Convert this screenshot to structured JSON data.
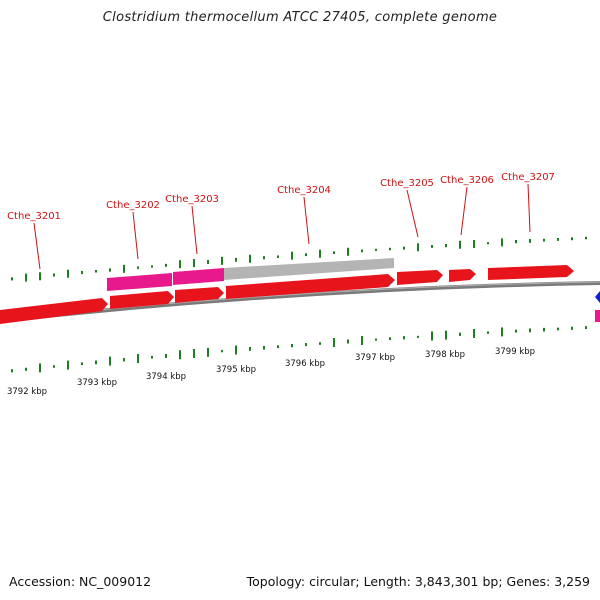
{
  "title": "Clostridium thermocellum ATCC 27405, complete genome",
  "footer": {
    "accession": "Accession: NC_009012",
    "summary": "Topology: circular; Length: 3,843,301 bp; Genes: 3,259"
  },
  "colors": {
    "gene_forward": "#e8141c",
    "gene_magenta": "#e8198c",
    "gene_gray": "#b4b4b4",
    "backbone": "#808080",
    "gc_tick": "#1e7d1e",
    "label": "#cc1111",
    "marker": "#1020c8"
  },
  "genome_map": {
    "visible_range_kbp": [
      3792,
      3800
    ],
    "scale_labels": [
      "3792 kbp",
      "3793 kbp",
      "3794 kbp",
      "3795 kbp",
      "3796 kbp",
      "3797 kbp",
      "3798 kbp",
      "3799 kbp"
    ],
    "gene_labels": [
      "Cthe_3201",
      "Cthe_3202",
      "Cthe_3203",
      "Cthe_3204",
      "Cthe_3205",
      "Cthe_3206",
      "Cthe_3207"
    ]
  }
}
